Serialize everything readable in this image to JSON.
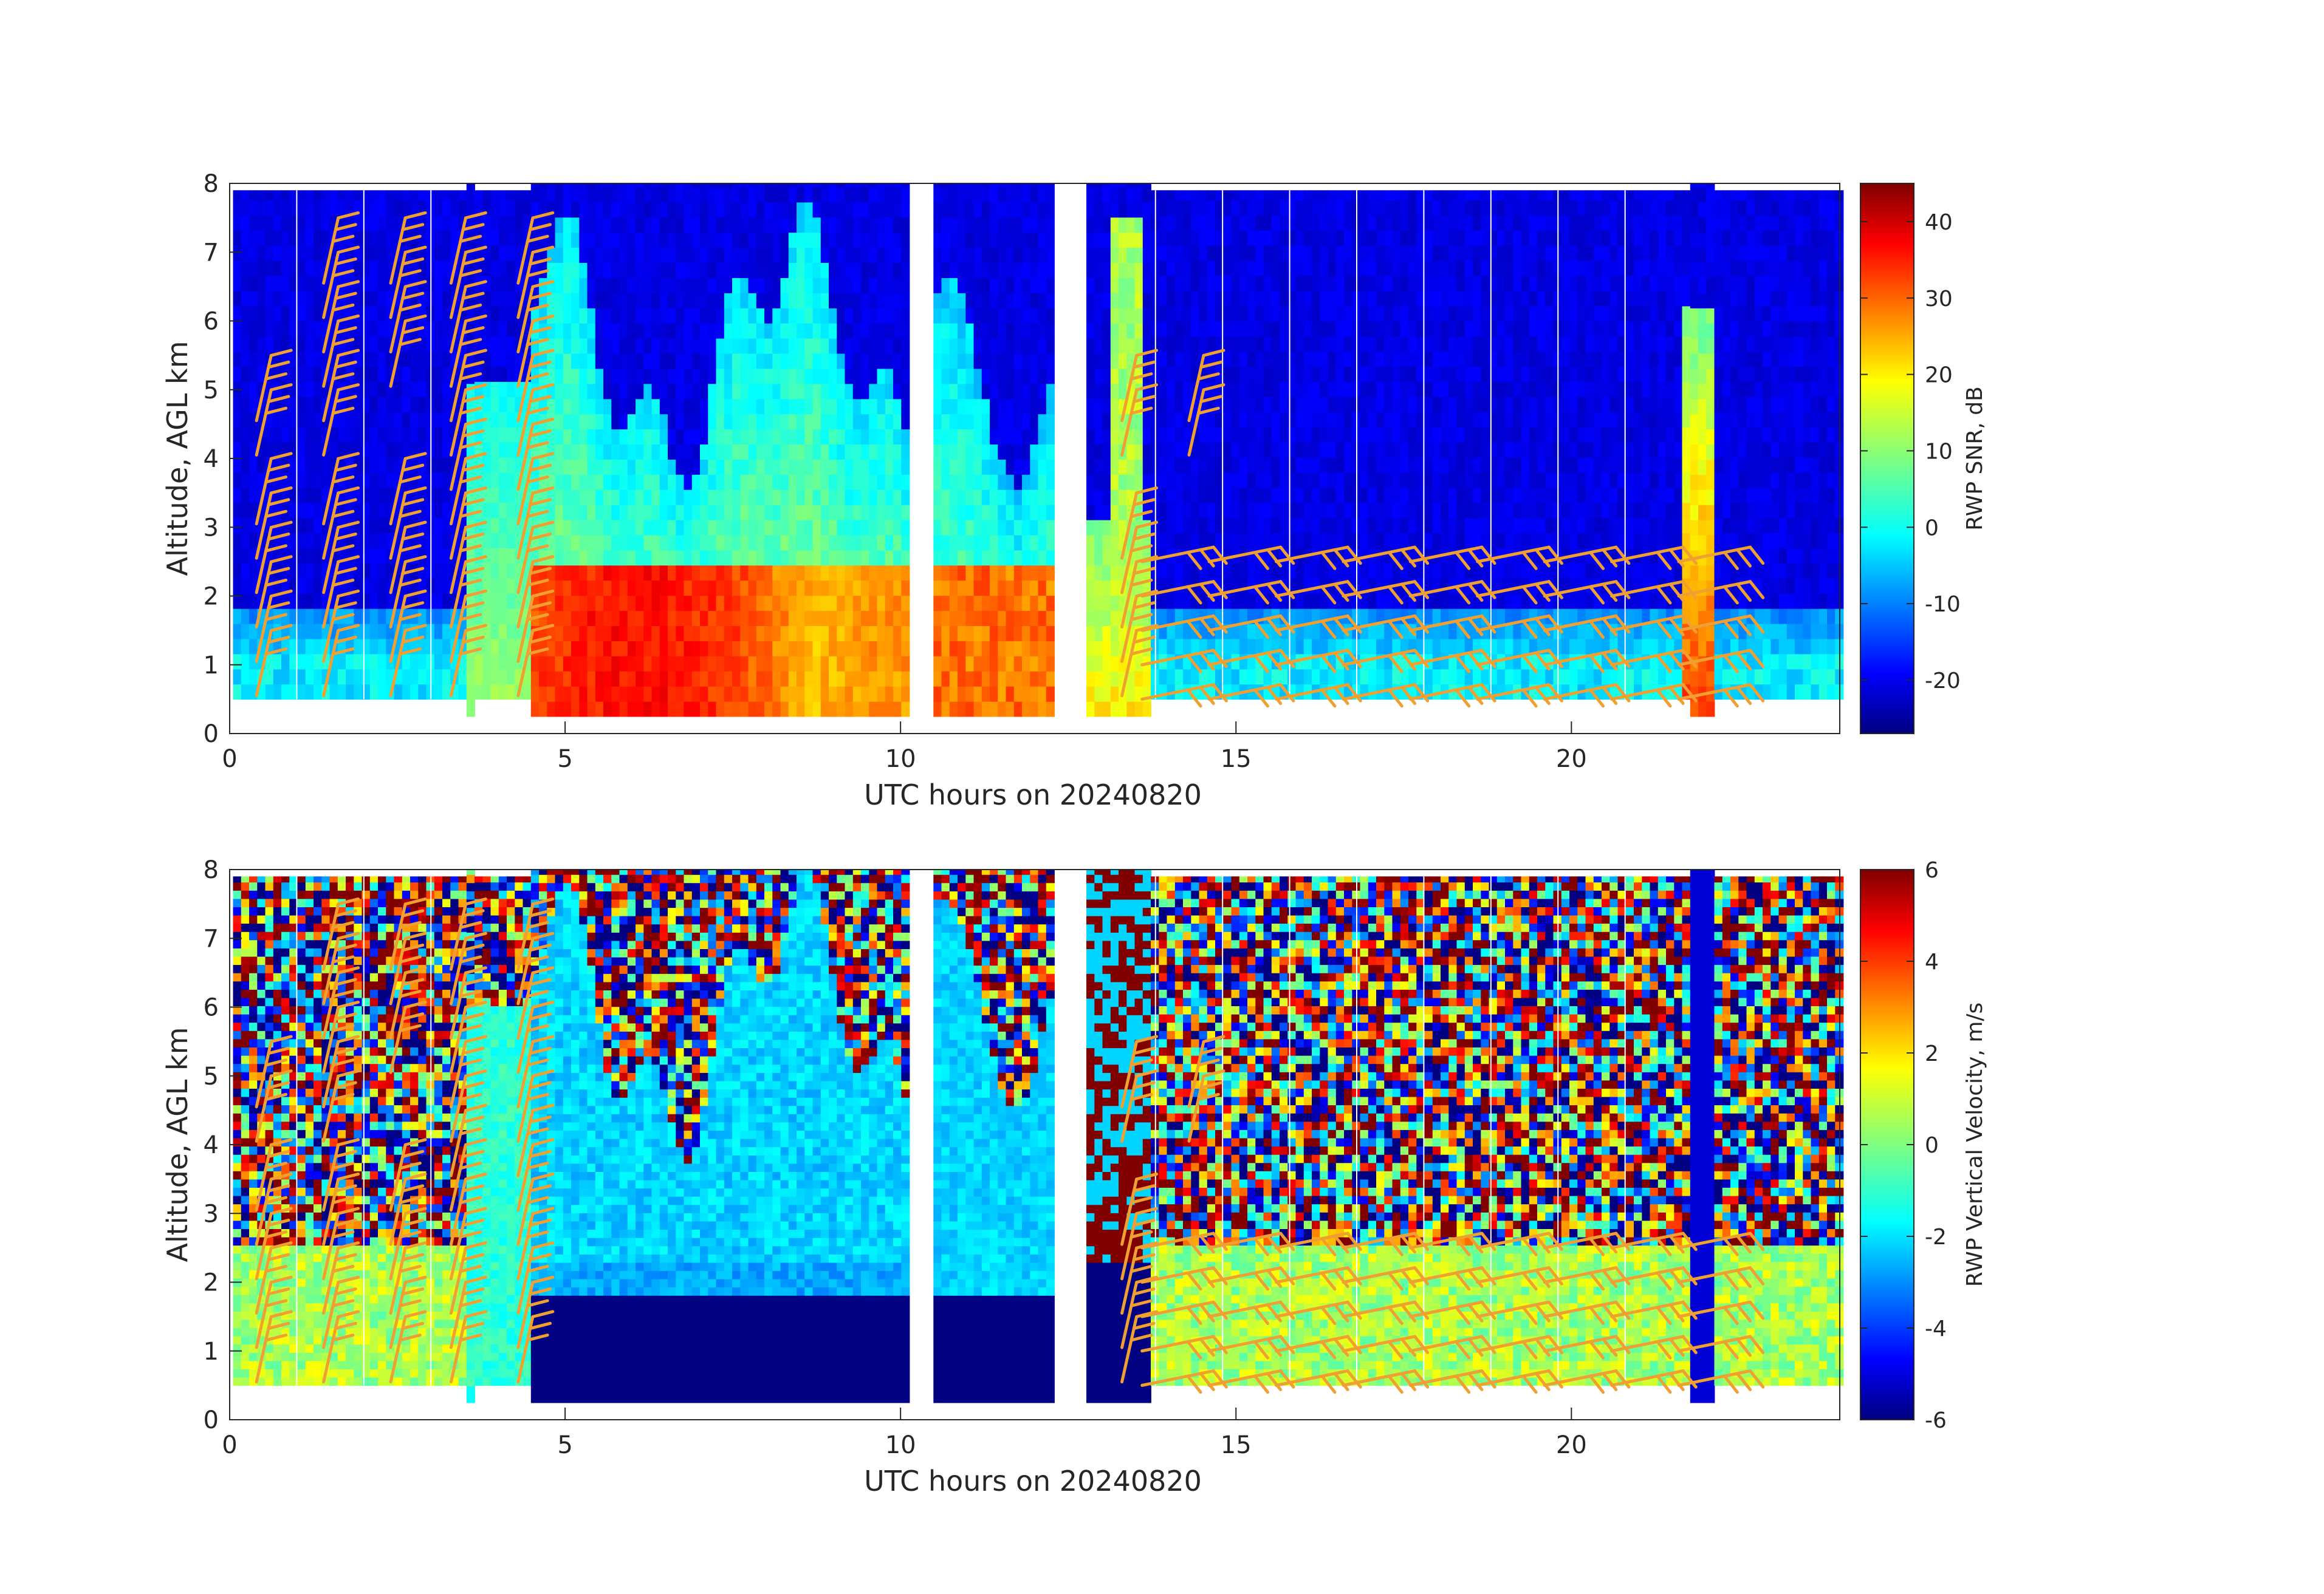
{
  "chart_data": [
    {
      "type": "heatmap",
      "xlabel": "UTC hours on 20240820",
      "ylabel": "Altitude, AGL km",
      "xlim": [
        0,
        24
      ],
      "ylim": [
        0,
        8
      ],
      "xticks": [
        0,
        5,
        10,
        15,
        20
      ],
      "yticks": [
        0,
        1,
        2,
        3,
        4,
        5,
        6,
        7,
        8
      ],
      "colorbar": {
        "label": "RWP SNR, dB",
        "range": [
          -27,
          45
        ],
        "ticks": [
          40,
          30,
          20,
          10,
          0,
          -10,
          -20
        ],
        "colormap": "jet"
      },
      "gaps_hours": [
        [
          10.05,
          10.45
        ],
        [
          12.25,
          12.7
        ]
      ],
      "overlay": "wind barbs (orange)"
    },
    {
      "type": "heatmap",
      "xlabel": "UTC hours on 20240820",
      "ylabel": "Altitude, AGL km",
      "xlim": [
        0,
        24
      ],
      "ylim": [
        0,
        8
      ],
      "xticks": [
        0,
        5,
        10,
        15,
        20
      ],
      "yticks": [
        0,
        1,
        2,
        3,
        4,
        5,
        6,
        7,
        8
      ],
      "colorbar": {
        "label": "RWP Vertical Velocity, m/s",
        "range": [
          -6,
          6
        ],
        "ticks": [
          6,
          4,
          2,
          0,
          -2,
          -4,
          -6
        ],
        "colormap": "jet"
      },
      "gaps_hours": [
        [
          10.05,
          10.45
        ],
        [
          12.25,
          12.7
        ]
      ],
      "overlay": "wind barbs (orange)"
    }
  ],
  "colors": {
    "barb": "#f0a030",
    "background_low": "#0a1e9a",
    "background_high": "#7f0000"
  }
}
